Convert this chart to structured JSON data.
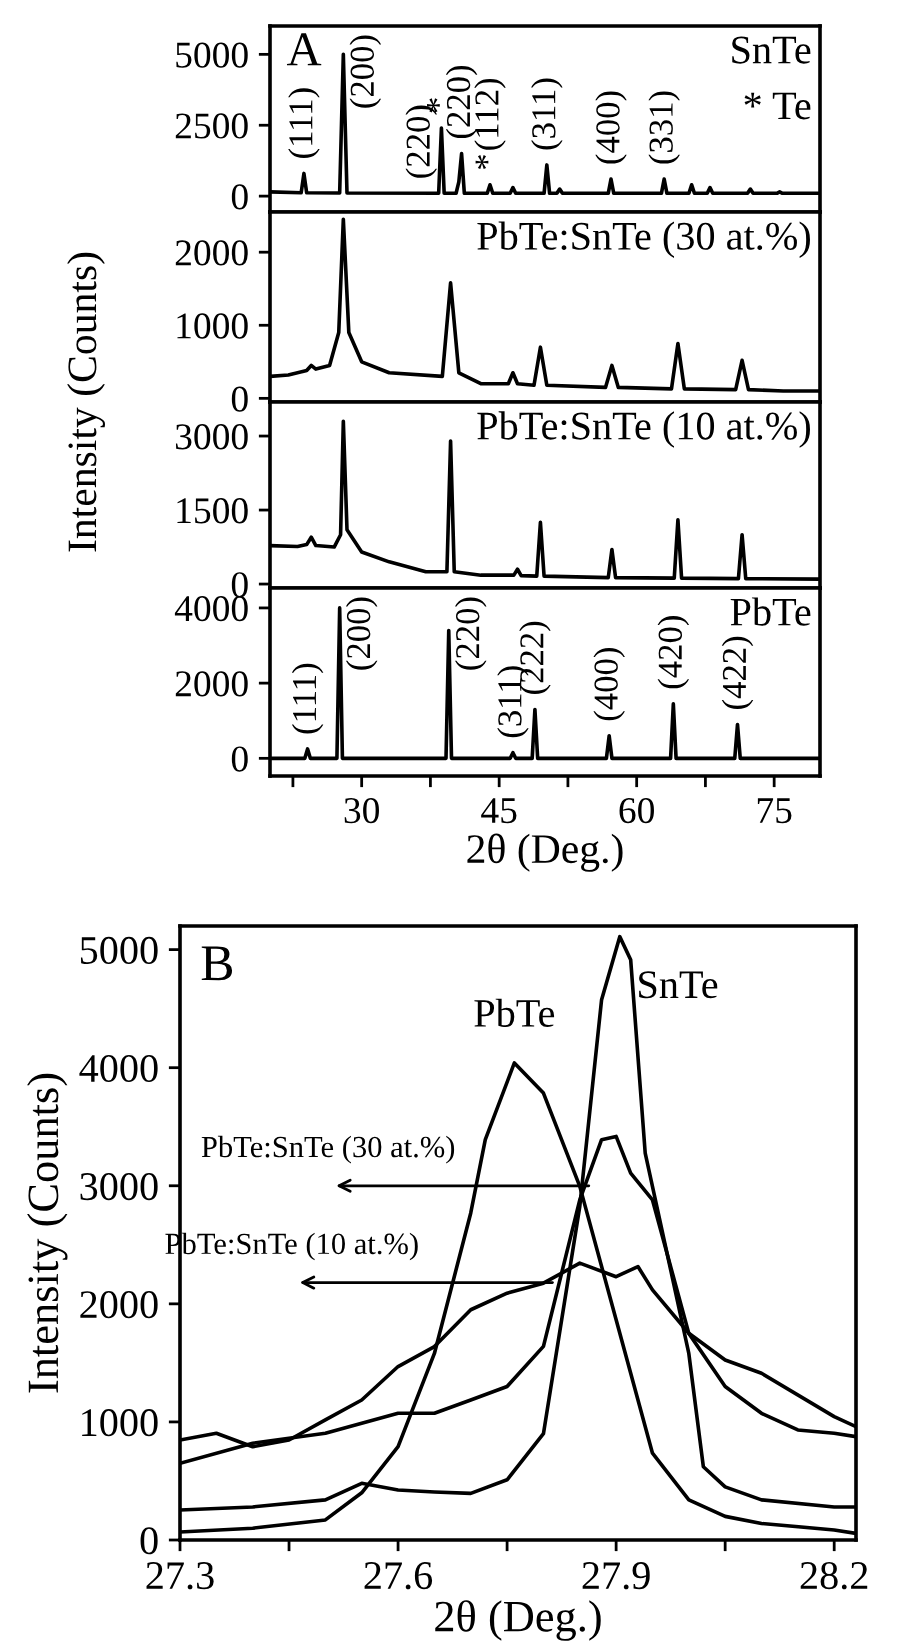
{
  "chart_data": [
    {
      "type": "line",
      "xlim": [
        20,
        80
      ],
      "ylim": [
        -560,
        6000
      ],
      "yticks": [
        0,
        2500,
        5000
      ],
      "tick_labels": "y",
      "xticks": [
        {
          "value": 22.5,
          "label": null
        },
        30,
        {
          "value": 37.5,
          "label": null
        },
        45,
        {
          "value": 52.5,
          "label": null
        },
        60,
        {
          "value": 67.5,
          "label": null
        },
        75
      ],
      "series": [
        {
          "name": "SnTe",
          "color": "#000000",
          "x": [
            20,
            23.4,
            23.7,
            24.0,
            27.6,
            28.0,
            28.4,
            38.4,
            38.7,
            39.0,
            40.3,
            40.6,
            40.9,
            41.2,
            43.7,
            44.0,
            44.3,
            46.2,
            46.5,
            46.8,
            49.9,
            50.2,
            50.5,
            51.3,
            51.6,
            51.9,
            56.9,
            57.2,
            57.5,
            62.7,
            63.0,
            63.3,
            65.7,
            66.0,
            66.3,
            67.7,
            68.0,
            68.3,
            72.1,
            72.4,
            72.7,
            75.3,
            75.6,
            75.9,
            80
          ],
          "values": [
            150,
            120,
            800,
            120,
            110,
            5000,
            110,
            100,
            2400,
            100,
            100,
            500,
            1500,
            100,
            100,
            400,
            100,
            100,
            300,
            100,
            100,
            1100,
            100,
            100,
            250,
            100,
            100,
            600,
            100,
            100,
            600,
            100,
            100,
            400,
            100,
            100,
            300,
            100,
            100,
            250,
            100,
            100,
            150,
            100,
            100
          ]
        }
      ],
      "annotations": [
        "A",
        "* Te",
        {
          "text": "(111)",
          "x": 23.7,
          "y": 800
        },
        {
          "text": "(200)",
          "x": 28.0,
          "y": 5000
        },
        {
          "text": "(220)",
          "x": 36.5,
          "y": 100
        },
        {
          "text": "*",
          "x": 38.7,
          "y": 2400
        },
        {
          "text": "(220)",
          "x": 40.9,
          "y": 1500
        },
        {
          "text": "*",
          "x": 44.0,
          "y": 400
        },
        {
          "text": "(112)",
          "x": 44.0,
          "y": 400
        },
        {
          "text": "(311)",
          "x": 50.2,
          "y": 1100
        },
        {
          "text": "(400)",
          "x": 57.2,
          "y": 600
        },
        {
          "text": "(331)",
          "x": 63.0,
          "y": 600
        }
      ]
    },
    {
      "type": "line",
      "xlim": [
        20,
        80
      ],
      "ylim": [
        -50,
        2550
      ],
      "yticks": [
        0,
        1000,
        2000
      ],
      "tick_labels": "y",
      "ylabel": "Intensity (Counts)",
      "xticks": [
        {
          "value": 22.5,
          "label": null
        },
        30,
        {
          "value": 37.5,
          "label": null
        },
        45,
        {
          "value": 52.5,
          "label": null
        },
        60,
        {
          "value": 67.5,
          "label": null
        },
        75
      ],
      "series": [
        {
          "name": "PbTe:SnTe (30 at.%)",
          "color": "#000000",
          "x": [
            20,
            22,
            24.0,
            24.5,
            25.0,
            26.5,
            27.5,
            28.0,
            28.6,
            30,
            33,
            38.8,
            39.7,
            40.6,
            43,
            46.0,
            46.5,
            47.0,
            48.8,
            49.5,
            50.2,
            56.6,
            57.3,
            58.0,
            63.8,
            64.5,
            65.2,
            70.8,
            71.5,
            72.2,
            76,
            80
          ],
          "values": [
            300,
            320,
            380,
            450,
            400,
            450,
            900,
            2450,
            900,
            500,
            350,
            300,
            1580,
            350,
            200,
            200,
            350,
            200,
            180,
            700,
            180,
            150,
            450,
            150,
            130,
            750,
            130,
            120,
            520,
            120,
            100,
            100
          ]
        }
      ]
    },
    {
      "type": "line",
      "xlim": [
        20,
        80
      ],
      "ylim": [
        -80,
        3690
      ],
      "yticks": [
        0,
        1500,
        3000
      ],
      "tick_labels": "y",
      "xticks": [
        {
          "value": 22.5,
          "label": null
        },
        30,
        {
          "value": 37.5,
          "label": null
        },
        45,
        {
          "value": 52.5,
          "label": null
        },
        60,
        {
          "value": 67.5,
          "label": null
        },
        75
      ],
      "series": [
        {
          "name": "PbTe:SnTe (10 at.%)",
          "color": "#000000",
          "x": [
            20,
            23,
            24.0,
            24.5,
            25.0,
            27.0,
            27.7,
            28.0,
            28.4,
            30,
            33,
            37,
            39.3,
            39.7,
            40.1,
            43,
            46.6,
            47.0,
            47.4,
            49.1,
            49.5,
            49.9,
            56.9,
            57.3,
            57.7,
            64.1,
            64.5,
            64.9,
            71.1,
            71.5,
            71.9,
            80
          ],
          "values": [
            780,
            760,
            800,
            950,
            780,
            750,
            1000,
            3300,
            1100,
            650,
            450,
            250,
            250,
            2900,
            250,
            180,
            180,
            300,
            170,
            160,
            1250,
            160,
            130,
            700,
            130,
            120,
            1300,
            120,
            110,
            1000,
            110,
            100
          ]
        }
      ]
    },
    {
      "type": "line",
      "xlim": [
        20,
        80
      ],
      "ylim": [
        -470,
        4530
      ],
      "yticks": [
        0,
        2000,
        4000
      ],
      "xlabel": "2θ (Deg.)",
      "xticks": [
        {
          "value": 22.5,
          "label": null
        },
        30,
        {
          "value": 37.5,
          "label": null
        },
        45,
        {
          "value": 52.5,
          "label": null
        },
        60,
        {
          "value": 67.5,
          "label": null
        },
        75
      ],
      "series": [
        {
          "name": "PbTe",
          "color": "#000000",
          "x": [
            20,
            23.8,
            24.1,
            24.4,
            27.3,
            27.6,
            27.9,
            39.2,
            39.5,
            39.8,
            46.2,
            46.5,
            46.8,
            48.6,
            48.9,
            49.2,
            56.7,
            57.0,
            57.3,
            63.7,
            64.0,
            64.3,
            70.7,
            71.0,
            71.3,
            80
          ],
          "values": [
            0,
            0,
            250,
            0,
            0,
            4000,
            0,
            0,
            3400,
            0,
            0,
            150,
            0,
            0,
            1300,
            0,
            0,
            600,
            0,
            0,
            1450,
            0,
            0,
            900,
            0,
            0
          ]
        }
      ],
      "annotations": [
        {
          "text": "(111)",
          "x": 24.1,
          "y": 250
        },
        {
          "text": "(200)",
          "x": 27.6,
          "y": 4000
        },
        {
          "text": "(220)",
          "x": 39.5,
          "y": 3400
        },
        {
          "text": "(311)",
          "x": 46.5,
          "y": 150
        },
        {
          "text": "(222)",
          "x": 48.9,
          "y": 1300
        },
        {
          "text": "(400)",
          "x": 57.0,
          "y": 600
        },
        {
          "text": "(420)",
          "x": 64.0,
          "y": 1450
        },
        {
          "text": "(422)",
          "x": 71.0,
          "y": 900
        }
      ]
    },
    {
      "type": "line",
      "xlim": [
        27.3,
        28.23
      ],
      "ylim": [
        0,
        5200
      ],
      "yticks": [
        0,
        1000,
        2000,
        3000,
        4000,
        5000
      ],
      "xticks": [
        27.3,
        {
          "value": 27.45,
          "label": null
        },
        27.6,
        {
          "value": 27.75,
          "label": null
        },
        27.9,
        {
          "value": 28.05,
          "label": null
        },
        28.2
      ],
      "xlabel": "2θ (Deg.)",
      "ylabel": "Intensity (Counts)",
      "series": [
        {
          "name": "PbTe",
          "color": "#000000",
          "x": [
            27.3,
            27.4,
            27.5,
            27.55,
            27.6,
            27.65,
            27.7,
            27.72,
            27.76,
            27.8,
            27.85,
            27.9,
            27.95,
            28.0,
            28.05,
            28.1,
            28.2,
            28.23
          ],
          "values": [
            68,
            100,
            170,
            400,
            790,
            1580,
            2770,
            3390,
            4040,
            3785,
            2995,
            1865,
            735,
            340,
            200,
            140,
            85,
            56
          ]
        },
        {
          "name": "SnTe",
          "color": "#000000",
          "x": [
            27.3,
            27.4,
            27.5,
            27.55,
            27.6,
            27.65,
            27.7,
            27.75,
            27.8,
            27.85,
            27.88,
            27.905,
            27.92,
            27.94,
            27.97,
            28.0,
            28.02,
            28.05,
            28.1,
            28.2,
            28.23
          ],
          "values": [
            254,
            280,
            340,
            480,
            424,
            407,
            395,
            510,
            900,
            2825,
            4576,
            5110,
            4915,
            3277,
            2430,
            1580,
            620,
            450,
            340,
            280,
            280
          ]
        },
        {
          "color": "#000000",
          "x": [
            27.3,
            27.4,
            27.5,
            27.6,
            27.65,
            27.7,
            27.75,
            27.8,
            27.85,
            27.88,
            27.9,
            27.92,
            27.95,
            28.0,
            28.05,
            28.1,
            28.15,
            28.2,
            28.23
          ],
          "values": [
            650,
            820,
            904,
            1073,
            1073,
            1186,
            1300,
            1640,
            2880,
            3390,
            3418,
            3107,
            2880,
            1750,
            1300,
            1073,
            932,
            904,
            875
          ]
        },
        {
          "color": "#000000",
          "x": [
            27.3,
            27.35,
            27.4,
            27.45,
            27.5,
            27.55,
            27.6,
            27.65,
            27.7,
            27.75,
            27.8,
            27.85,
            27.9,
            27.93,
            27.95,
            28.0,
            28.05,
            28.1,
            28.2,
            28.23
          ],
          "values": [
            847,
            904,
            790,
            847,
            1017,
            1186,
            1469,
            1638,
            1950,
            2090,
            2175,
            2345,
            2230,
            2316,
            2118,
            1751,
            1525,
            1412,
            1045,
            960
          ]
        }
      ],
      "annotations": [
        "B",
        {
          "text": "PbTe:SnTe (30 at.%)",
          "x": 27.87,
          "y": 3000
        },
        {
          "text": "PbTe:SnTe (10 at.%)",
          "x": 27.82,
          "y": 2180
        }
      ]
    }
  ]
}
